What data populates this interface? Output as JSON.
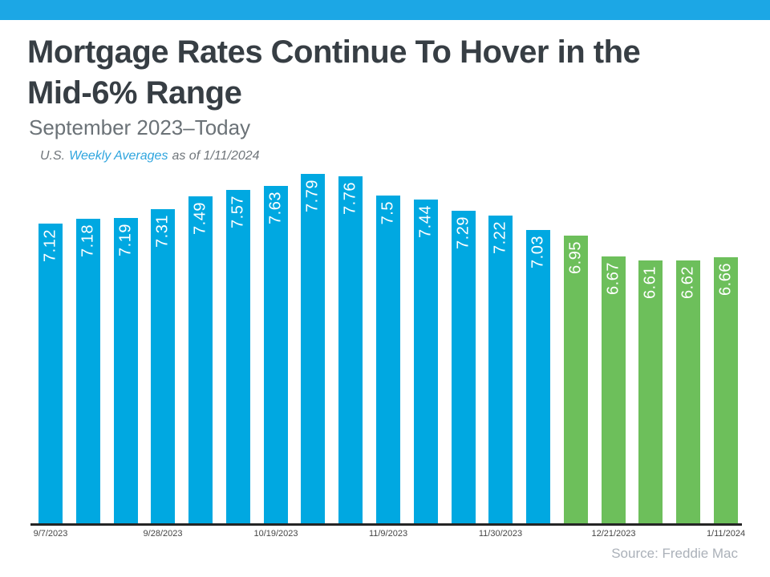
{
  "accent_color": "#1ca7e5",
  "header": {
    "title_line1": "Mortgage Rates Continue To Hover in the",
    "title_line2": "Mid-6% Range",
    "subtitle": "September 2023–Today",
    "note": {
      "prefix": "U.S.",
      "highlight": "Weekly Averages",
      "suffix": "as of 1/11/2024"
    }
  },
  "chart_data": {
    "type": "bar",
    "title": "Mortgage Rates Continue To Hover in the Mid-6% Range",
    "subtitle": "September 2023–Today",
    "note": "U.S. Weekly Averages as of 1/11/2024",
    "unit": "percent",
    "values": [
      7.12,
      7.18,
      7.19,
      7.31,
      7.49,
      7.57,
      7.63,
      7.79,
      7.76,
      7.5,
      7.44,
      7.29,
      7.22,
      7.03,
      6.95,
      6.67,
      6.61,
      6.62,
      6.66
    ],
    "bar_labels": [
      "7.12",
      "7.18",
      "7.19",
      "7.31",
      "7.49",
      "7.57",
      "7.63",
      "7.79",
      "7.76",
      "7.5",
      "7.44",
      "7.29",
      "7.22",
      "7.03",
      "6.95",
      "6.67",
      "6.61",
      "6.62",
      "6.66"
    ],
    "colors": {
      "recent_high_blue": "#00a8e1",
      "recent_low_green": "#6dbf5b"
    },
    "green_start_index": 14,
    "x_tick_labels": [
      "9/7/2023",
      "9/28/2023",
      "10/19/2023",
      "11/9/2023",
      "11/30/2023",
      "12/21/2023",
      "1/11/2024"
    ],
    "x_tick_indices": [
      0,
      3,
      6,
      9,
      12,
      15,
      18
    ],
    "ylim": [
      3.05,
      8.0
    ],
    "grid": false,
    "legend": false,
    "label_rotation": "vertical-bottom-to-top",
    "source": "Source: Freddie Mac"
  },
  "footer": {
    "source": "Source: Freddie Mac"
  }
}
